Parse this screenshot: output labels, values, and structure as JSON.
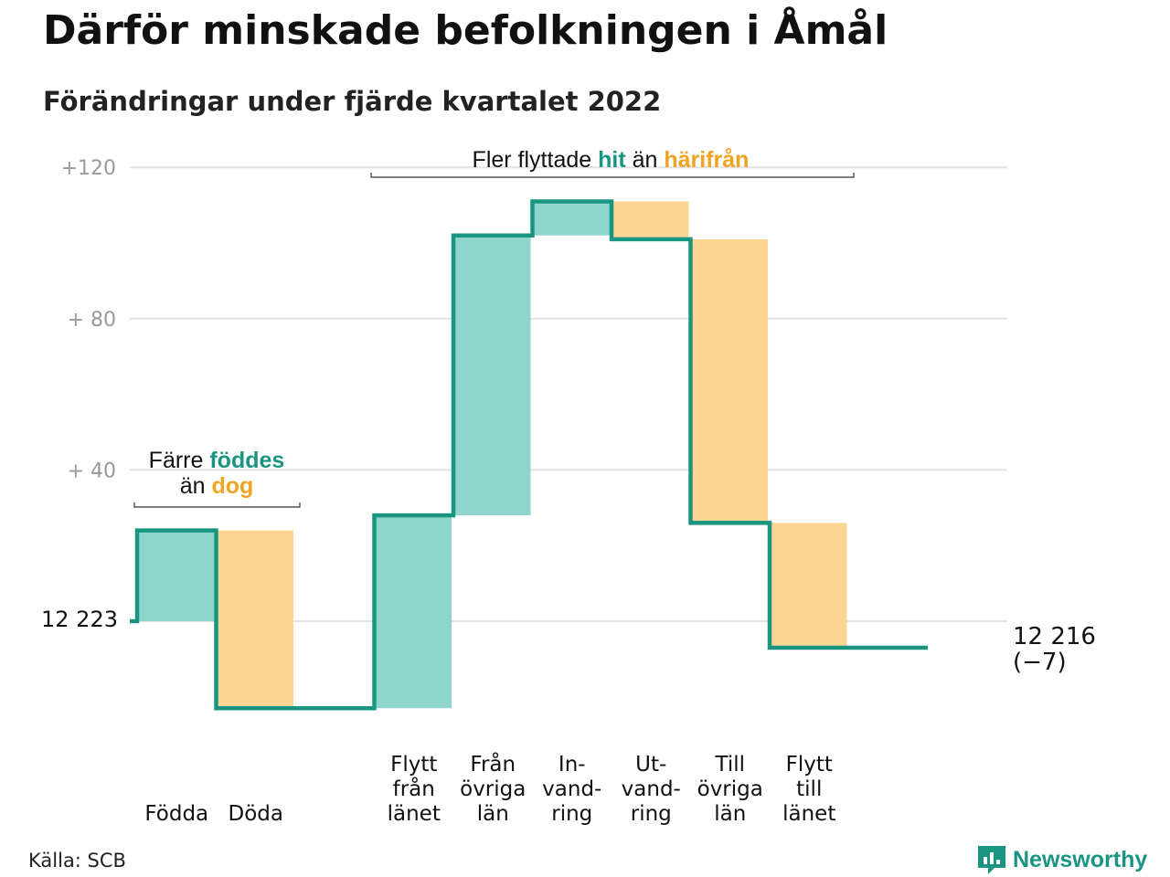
{
  "title": "Därför minskade befolkningen i Åmål",
  "subtitle": "Förändringar under fjärde kvartalet 2022",
  "source": "Källa: SCB",
  "brand": {
    "name": "Newsworthy",
    "icon": "newsworthy-logo-icon"
  },
  "colors": {
    "line": "#1a9582",
    "increase": "#8ed6cc",
    "decrease": "#fbd692",
    "grid": "#e3e3e3",
    "tick": "#9a9a9a",
    "hit": "#1a9582",
    "harifran": "#f0a421"
  },
  "annotations": {
    "natural": {
      "line1_pre": "Färre ",
      "line1_hl": "föddes",
      "line2_pre": "än ",
      "line2_hl": "dog"
    },
    "migration": {
      "pre": "Fler flyttade ",
      "hl1": "hit",
      "mid": " än ",
      "hl2": "härifrån"
    }
  },
  "start_label": "12 223",
  "end_label": {
    "line1": "12 216",
    "line2": "(−7)"
  },
  "chart_data": {
    "type": "waterfall",
    "title": "Därför minskade befolkningen i Åmål",
    "subtitle": "Förändringar under fjärde kvartalet 2022",
    "start_value": 12223,
    "end_value": 12216,
    "net_change": -7,
    "y_ticks": [
      {
        "offset": 0,
        "label": "12 223"
      },
      {
        "offset": 40,
        "label": "+ 40"
      },
      {
        "offset": 80,
        "label": "+ 80"
      },
      {
        "offset": 120,
        "label": "+120"
      }
    ],
    "ylim_offset": [
      -23,
      120
    ],
    "grid": true,
    "categories": [
      {
        "label": [
          "Födda"
        ],
        "change": 24,
        "kind": "increase"
      },
      {
        "label": [
          "Döda"
        ],
        "change": -47,
        "kind": "decrease"
      },
      {
        "label": [],
        "change": 0,
        "kind": "gap"
      },
      {
        "label": [
          "Flytt",
          "från",
          "länet"
        ],
        "change": 51,
        "kind": "increase"
      },
      {
        "label": [
          "Från",
          "övriga",
          "län"
        ],
        "change": 74,
        "kind": "increase"
      },
      {
        "label": [
          "In-",
          "vand-",
          "ring"
        ],
        "change": 9,
        "kind": "increase"
      },
      {
        "label": [
          "Ut-",
          "vand-",
          "ring"
        ],
        "change": -10,
        "kind": "decrease"
      },
      {
        "label": [
          "Till",
          "övriga",
          "län"
        ],
        "change": -75,
        "kind": "decrease"
      },
      {
        "label": [
          "Flytt",
          "till",
          "länet"
        ],
        "change": -33,
        "kind": "decrease"
      },
      {
        "label": [],
        "change": 0,
        "kind": "gap"
      }
    ]
  }
}
